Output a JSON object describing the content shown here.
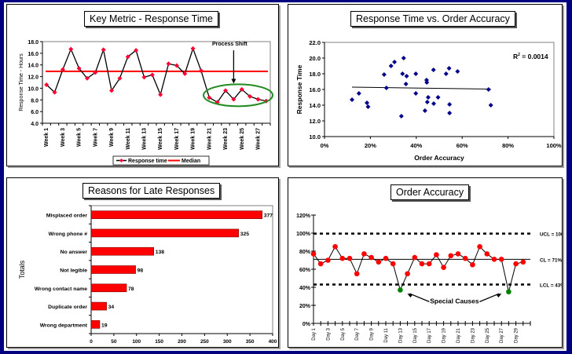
{
  "dashboard": {
    "frame_color": "#000080"
  },
  "chart_data": [
    {
      "id": "key-metric",
      "type": "line",
      "title": "Key Metric - Response Time",
      "ylabel": "Response Time - Hours",
      "xlabel": "",
      "ylim": [
        4.0,
        18.0
      ],
      "yticks": [
        "4.0",
        "6.0",
        "8.0",
        "10.0",
        "12.0",
        "14.0",
        "16.0",
        "18.0"
      ],
      "categories": [
        "Week 1",
        "Week 2",
        "Week 3",
        "Week 4",
        "Week 5",
        "Week 6",
        "Week 7",
        "Week 8",
        "Week 9",
        "Week 10",
        "Week 11",
        "Week 12",
        "Week 13",
        "Week 14",
        "Week 15",
        "Week 16",
        "Week 17",
        "Week 18",
        "Week 19",
        "Week 20",
        "Week 21",
        "Week 22",
        "Week 23",
        "Week 24",
        "Week 25",
        "Week 26",
        "Week 27",
        "Week 28"
      ],
      "xtick_labels": [
        "Week 1",
        "Week 3",
        "Week 5",
        "Week 7",
        "Week 9",
        "Week 11",
        "Week 13",
        "Week 15",
        "Week 17",
        "Week 19",
        "Week 21",
        "Week 23",
        "Week 25",
        "Week 27"
      ],
      "series": [
        {
          "name": "Response time",
          "color": "#000000",
          "marker_color": "#ff0033",
          "values": [
            10.6,
            9.3,
            13.2,
            16.7,
            13.4,
            11.7,
            12.7,
            16.6,
            9.6,
            11.7,
            15.4,
            16.5,
            11.9,
            12.3,
            8.9,
            14.2,
            13.9,
            12.5,
            16.8,
            13.0,
            8.4,
            7.6,
            9.6,
            8.1,
            9.8,
            8.6,
            8.1,
            7.8
          ]
        },
        {
          "name": "Median",
          "color": "#ff0000",
          "value": 12.9
        }
      ],
      "annotations": [
        {
          "text": "Process Shift",
          "type": "arrow",
          "target_week": 24
        },
        {
          "type": "ellipse",
          "color": "#228b22",
          "from_week": 20,
          "to_week": 28
        }
      ],
      "legend": "bottom",
      "grid": false
    },
    {
      "id": "scatter",
      "type": "scatter",
      "title": "Response Time vs. Order Accuracy",
      "xlabel": "Order Accuracy",
      "ylabel": "Response Time",
      "xlim": [
        0,
        100
      ],
      "ylim": [
        10.0,
        22.0
      ],
      "xticks": [
        "0%",
        "20%",
        "40%",
        "60%",
        "80%",
        "100%"
      ],
      "yticks": [
        "10.0",
        "12.0",
        "14.0",
        "16.0",
        "18.0",
        "20.0",
        "22.0"
      ],
      "marker_color": "#00008b",
      "points": [
        [
          12,
          14.7
        ],
        [
          15,
          15.5
        ],
        [
          18.5,
          14.3
        ],
        [
          19,
          13.8
        ],
        [
          26,
          17.9
        ],
        [
          27,
          16.2
        ],
        [
          29,
          19.0
        ],
        [
          30.5,
          19.5
        ],
        [
          33.5,
          12.6
        ],
        [
          34,
          18.0
        ],
        [
          34.5,
          20.0
        ],
        [
          35.5,
          16.7
        ],
        [
          35.8,
          17.7
        ],
        [
          39.8,
          18.0
        ],
        [
          39.8,
          15.5
        ],
        [
          43.8,
          13.3
        ],
        [
          44.5,
          17.2
        ],
        [
          44.6,
          16.9
        ],
        [
          44.8,
          14.4
        ],
        [
          45.2,
          15.0
        ],
        [
          47.5,
          18.5
        ],
        [
          47.6,
          14.2
        ],
        [
          49.5,
          15.0
        ],
        [
          53,
          18.0
        ],
        [
          54.3,
          18.7
        ],
        [
          54.5,
          14.1
        ],
        [
          54.5,
          13.0
        ],
        [
          58,
          18.3
        ],
        [
          71.5,
          16.0
        ],
        [
          72.5,
          14.0
        ]
      ],
      "trendline": {
        "x": [
          12,
          72.5
        ],
        "y": [
          16.3,
          16.05
        ]
      },
      "annotation": "R",
      "annotation_sup": "2",
      "annotation_rest": " = 0.0014",
      "grid": false
    },
    {
      "id": "late-reasons",
      "type": "bar",
      "orientation": "horizontal",
      "title": "Reasons for Late Responses",
      "ylabel": "Totals",
      "xlabel": "",
      "xlim": [
        0,
        400
      ],
      "xticks": [
        "0",
        "50",
        "100",
        "150",
        "200",
        "250",
        "300",
        "350",
        "400"
      ],
      "categories": [
        "Misplaced order",
        "Wrong phone #",
        "No answer",
        "Not legible",
        "Wrong contact name",
        "Duplicate order",
        "Wrong department"
      ],
      "values": [
        377,
        325,
        138,
        98,
        78,
        34,
        19
      ],
      "bar_color": "#ff0000",
      "grid": false
    },
    {
      "id": "order-accuracy",
      "type": "line",
      "title": "Order Accuracy",
      "ylim": [
        0,
        120
      ],
      "yticks": [
        "0%",
        "20%",
        "40%",
        "60%",
        "80%",
        "100%",
        "120%"
      ],
      "categories": [
        "Day 1",
        "Day 2",
        "Day 3",
        "Day 4",
        "Day 5",
        "Day 6",
        "Day 7",
        "Day 8",
        "Day 9",
        "Day 10",
        "Day 11",
        "Day 12",
        "Day 13",
        "Day 14",
        "Day 15",
        "Day 16",
        "Day 17",
        "Day 18",
        "Day 19",
        "Day 20",
        "Day 21",
        "Day 22",
        "Day 23",
        "Day 24",
        "Day 25",
        "Day 26",
        "Day 27",
        "Day 28",
        "Day 29",
        "Day 30"
      ],
      "xtick_labels": [
        "Day 1",
        "Day 3",
        "Day 5",
        "Day 7",
        "Day 9",
        "Day 11",
        "Day 13",
        "Day 15",
        "Day 17",
        "Day 19",
        "Day 21",
        "Day 23",
        "Day 25",
        "Day 27",
        "Day 29"
      ],
      "series": [
        {
          "name": "Order Accuracy",
          "color": "#000000",
          "marker_color": "#ff0000",
          "special_color": "#008000",
          "special_days": [
            13,
            28
          ],
          "values": [
            77,
            66,
            70,
            85,
            72,
            72,
            55,
            77,
            73,
            68,
            72,
            66,
            37,
            55,
            73,
            66,
            66,
            76,
            62,
            75,
            77,
            72,
            65,
            85,
            77,
            71,
            71,
            35,
            66,
            68
          ]
        }
      ],
      "control_limits": [
        {
          "name": "UCL",
          "label": "UCL = 100%",
          "value": 99.5,
          "style": "dotted"
        },
        {
          "name": "CL",
          "label": "CL = 71%",
          "value": 71,
          "style": "solid"
        },
        {
          "name": "LCL",
          "label": "LCL = 43%",
          "value": 43,
          "style": "dotted"
        }
      ],
      "annotation": "Special Causes",
      "grid": false
    }
  ]
}
